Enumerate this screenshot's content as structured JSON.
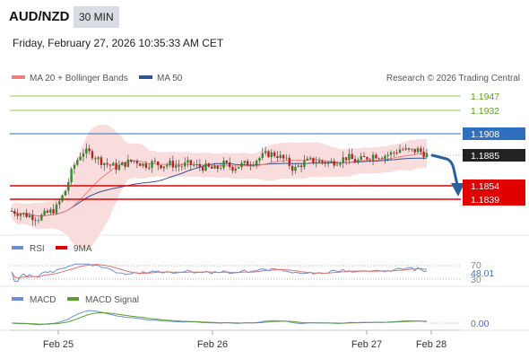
{
  "header": {
    "pair": "AUD/NZD",
    "timeframe": "30 MIN",
    "datetime": "Friday, February 27, 2026 10:35:33 AM CET"
  },
  "legend": {
    "ma20": "MA 20 + Bollinger Bands",
    "ma50": "MA 50",
    "copyright": "Research © 2026 Trading Central",
    "rsi": "RSI",
    "rsi_ma": "9MA",
    "macd": "MACD",
    "macd_signal": "MACD Signal"
  },
  "colors": {
    "ma20": "#f08080",
    "ma50": "#2f5597",
    "band_fill": "#f9dcdc",
    "green_level": "#77b82a",
    "blue_level": "#2f6fc0",
    "red_level": "#e00000",
    "price_box": "#222222",
    "arrow": "#2a5f9e",
    "candle_up": "#2e8b2e",
    "candle_down": "#c02020",
    "rsi": "#6b8fd6",
    "macd": "#6b8fd6",
    "macd_signal": "#5aa02c"
  },
  "chart_data": [
    {
      "type": "candlestick",
      "name": "price",
      "x_ticks": [
        "Feb 25",
        "Feb 26",
        "Feb 27",
        "Feb 28"
      ],
      "ylim": [
        1.1815,
        1.1965
      ],
      "levels": [
        {
          "value": 1.1947,
          "label": "1.1947",
          "kind": "resistance-green"
        },
        {
          "value": 1.1932,
          "label": "1.1932",
          "kind": "resistance-green"
        },
        {
          "value": 1.1908,
          "label": "1.1908",
          "kind": "pivot-blue"
        },
        {
          "value": 1.1885,
          "label": "1.1885",
          "kind": "current-price"
        },
        {
          "value": 1.1854,
          "label": "1.1854",
          "kind": "support-red"
        },
        {
          "value": 1.1839,
          "label": "1.1839",
          "kind": "support-red"
        }
      ],
      "close_path": [
        1.1836,
        1.1834,
        1.1832,
        1.183,
        1.1834,
        1.1838,
        1.1852,
        1.1875,
        1.1888,
        1.1886,
        1.188,
        1.1876,
        1.1874,
        1.1878,
        1.188,
        1.1876,
        1.1878,
        1.1876,
        1.1877,
        1.1875,
        1.1877,
        1.1875,
        1.1874,
        1.1872,
        1.1877,
        1.1874,
        1.1876,
        1.1878,
        1.1882,
        1.1886,
        1.1885,
        1.188,
        1.1872,
        1.1878,
        1.188,
        1.1879,
        1.1878,
        1.188,
        1.1883,
        1.1879,
        1.1882,
        1.1885,
        1.1884,
        1.1886,
        1.189,
        1.1888,
        1.1889,
        1.1885
      ]
    },
    {
      "type": "line",
      "name": "rsi",
      "levels": [
        {
          "value": 70,
          "label": "70"
        },
        {
          "value": 30,
          "label": "30"
        }
      ],
      "current": 48.01,
      "current_label": "48.01",
      "ylim": [
        0,
        100
      ]
    },
    {
      "type": "line",
      "name": "macd",
      "zero_label": "0.00"
    }
  ]
}
